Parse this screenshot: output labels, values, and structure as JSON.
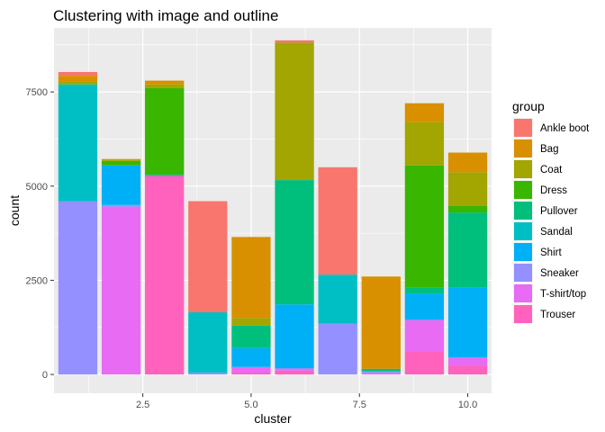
{
  "chart_data": {
    "type": "bar",
    "stacked": true,
    "title": "Clustering with image and outline",
    "xlabel": "cluster",
    "ylabel": "count",
    "xlim": [
      0.45,
      10.55
    ],
    "ylim": [
      -500,
      9200
    ],
    "x_ticks": [
      2.5,
      5.0,
      7.5,
      10.0
    ],
    "y_ticks": [
      0,
      2500,
      5000,
      7500
    ],
    "legend_title": "group",
    "legend_position": "right",
    "panel_background": "#ebebeb",
    "groups": [
      {
        "name": "Ankle boot",
        "color": "#f8766d"
      },
      {
        "name": "Bag",
        "color": "#d89000"
      },
      {
        "name": "Coat",
        "color": "#a3a500"
      },
      {
        "name": "Dress",
        "color": "#39b600"
      },
      {
        "name": "Pullover",
        "color": "#00bf7d"
      },
      {
        "name": "Sandal",
        "color": "#00bfc4"
      },
      {
        "name": "Shirt",
        "color": "#00b0f6"
      },
      {
        "name": "Sneaker",
        "color": "#9590ff"
      },
      {
        "name": "T-shirt/top",
        "color": "#e76bf3"
      },
      {
        "name": "Trouser",
        "color": "#ff62bc"
      }
    ],
    "clusters": [
      1,
      2,
      3,
      4,
      5,
      6,
      7,
      8,
      9,
      10
    ],
    "values": {
      "Ankle boot": [
        100,
        0,
        0,
        2950,
        0,
        60,
        2850,
        0,
        0,
        0
      ],
      "Bag": [
        150,
        30,
        100,
        0,
        2150,
        0,
        0,
        2450,
        500,
        520
      ],
      "Coat": [
        80,
        20,
        100,
        0,
        200,
        3650,
        0,
        0,
        1150,
        900
      ],
      "Dress": [
        0,
        120,
        2300,
        0,
        0,
        0,
        0,
        0,
        3250,
        170
      ],
      "Pullover": [
        0,
        0,
        0,
        0,
        600,
        3300,
        0,
        70,
        150,
        2000
      ],
      "Sandal": [
        3100,
        0,
        0,
        1600,
        0,
        0,
        1300,
        0,
        0,
        0
      ],
      "Shirt": [
        0,
        1050,
        30,
        0,
        500,
        1700,
        0,
        0,
        700,
        1850
      ],
      "Sneaker": [
        4600,
        50,
        0,
        50,
        0,
        0,
        1350,
        50,
        0,
        0
      ],
      "T-shirt/top": [
        0,
        4450,
        0,
        0,
        150,
        60,
        0,
        30,
        850,
        220
      ],
      "Trouser": [
        0,
        0,
        5270,
        0,
        50,
        100,
        0,
        0,
        600,
        230
      ]
    }
  }
}
